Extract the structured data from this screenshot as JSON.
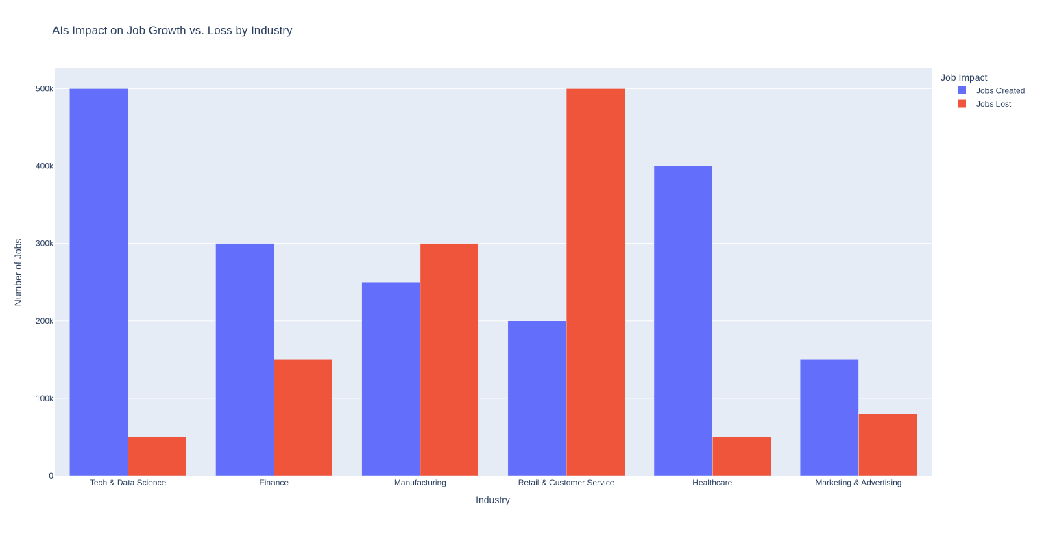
{
  "chart_data": {
    "type": "bar",
    "title": "AIs Impact on Job Growth vs. Loss by Industry",
    "xlabel": "Industry",
    "ylabel": "Number of Jobs",
    "categories": [
      "Tech & Data Science",
      "Finance",
      "Manufacturing",
      "Retail & Customer Service",
      "Healthcare",
      "Marketing & Advertising"
    ],
    "series": [
      {
        "name": "Jobs Created",
        "color": "#636efa",
        "values": [
          500000,
          300000,
          250000,
          200000,
          400000,
          150000
        ]
      },
      {
        "name": "Jobs Lost",
        "color": "#ef553b",
        "values": [
          50000,
          150000,
          300000,
          500000,
          50000,
          80000
        ]
      }
    ],
    "ylim": [
      0,
      526000
    ],
    "yticks": [
      0,
      100000,
      200000,
      300000,
      400000,
      500000
    ],
    "ytick_labels": [
      "0",
      "100k",
      "200k",
      "300k",
      "400k",
      "500k"
    ],
    "legend": {
      "title": "Job Impact",
      "placement": "top-right"
    },
    "grid": true,
    "plot_bgcolor": "#e5ecf6"
  }
}
